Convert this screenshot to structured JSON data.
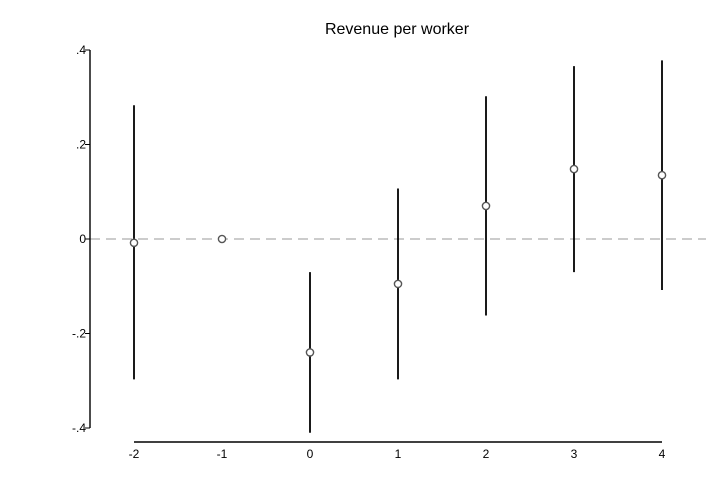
{
  "chart_data": {
    "type": "scatter",
    "subtype": "coefficient-plot-with-confidence-intervals",
    "title": "Revenue per worker",
    "xlabel": "",
    "ylabel": "",
    "x_ticks": [
      "-2",
      "-1",
      "0",
      "1",
      "2",
      "3",
      "4"
    ],
    "y_ticks": [
      {
        "value": 0.4,
        "label": ".4"
      },
      {
        "value": 0.2,
        "label": ".2"
      },
      {
        "value": 0,
        "label": "0"
      },
      {
        "value": -0.2,
        "label": "-.2"
      },
      {
        "value": -0.4,
        "label": "-.4"
      }
    ],
    "xlim": [
      -2.5,
      4.5
    ],
    "ylim": [
      -0.4,
      0.4
    ],
    "reference_line": {
      "y": 0,
      "style": "dashed",
      "color": "#bbbbbb"
    },
    "grid": false,
    "points": [
      {
        "x": -2,
        "y": -0.008,
        "ci_low": -0.297,
        "ci_high": 0.283
      },
      {
        "x": -1,
        "y": 0.0,
        "ci_low": null,
        "ci_high": null
      },
      {
        "x": 0,
        "y": -0.24,
        "ci_low": -0.41,
        "ci_high": -0.07
      },
      {
        "x": 1,
        "y": -0.095,
        "ci_low": -0.297,
        "ci_high": 0.107
      },
      {
        "x": 2,
        "y": 0.07,
        "ci_low": -0.162,
        "ci_high": 0.302
      },
      {
        "x": 3,
        "y": 0.148,
        "ci_low": -0.07,
        "ci_high": 0.366
      },
      {
        "x": 4,
        "y": 0.135,
        "ci_low": -0.108,
        "ci_high": 0.378
      }
    ],
    "colors": {
      "marker_stroke": "#555555",
      "ci_line": "#000000",
      "axis": "#000000",
      "reference_line": "#bbbbbb"
    }
  }
}
